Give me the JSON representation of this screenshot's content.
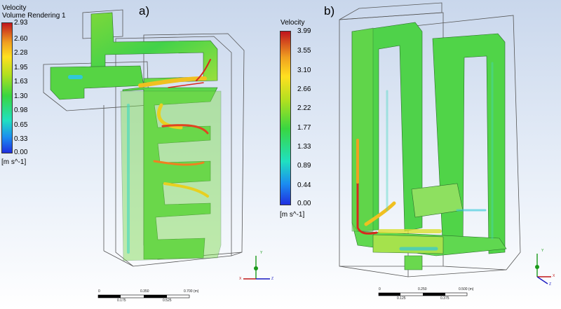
{
  "panel_a": {
    "label": "a)",
    "legend_title": "Velocity",
    "legend_subtitle": "Volume Rendering 1",
    "ticks": [
      "2.93",
      "2.60",
      "2.28",
      "1.95",
      "1.63",
      "1.30",
      "0.98",
      "0.65",
      "0.33",
      "0.00"
    ],
    "unit": "[m s^-1]",
    "scale_top": [
      "0",
      "0.350",
      "0.700 (m)"
    ],
    "scale_bottom": [
      "0.175",
      "0.525"
    ]
  },
  "panel_b": {
    "label": "b)",
    "legend_title": "Velocity",
    "ticks": [
      "3.99",
      "3.55",
      "3.10",
      "2.66",
      "2.22",
      "1.77",
      "1.33",
      "0.89",
      "0.44",
      "0.00"
    ],
    "unit": "[m s^-1]",
    "scale_top": [
      "0",
      "0.250",
      "0.500 (m)"
    ],
    "scale_bottom": [
      "0.125",
      "0.375"
    ]
  },
  "axes": {
    "y": "Y",
    "x": "X",
    "z": "Z"
  },
  "colors": {
    "hot": "#d8281e",
    "warm": "#f0c020",
    "mid": "#54d83c",
    "cool": "#30c8d8",
    "cold": "#2060e0"
  }
}
